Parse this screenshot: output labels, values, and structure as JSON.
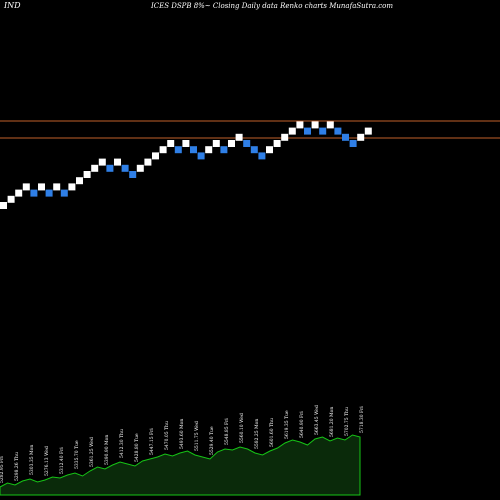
{
  "header": {
    "left": "IND",
    "center": "ICES DSPB 8%~  Closing Daily data  Renko  charts MunafaSutra.com"
  },
  "colors": {
    "background": "#000000",
    "up_brick": "#ffffff",
    "down_brick": "#2f7fe6",
    "reference_line": "#c0602a",
    "volume_fill": "#0a2a0a",
    "volume_stroke": "#16c416",
    "label_text": "#ffffff"
  },
  "chart_data": {
    "type": "renko",
    "title": "ICES DSPB 8%~  Closing Daily data  Renko  charts MunafaSutra.com",
    "reference_lines": [
      1,
      2
    ],
    "bricks": [
      {
        "dir": "up",
        "level": 0
      },
      {
        "dir": "up",
        "level": 1
      },
      {
        "dir": "up",
        "level": 2
      },
      {
        "dir": "up",
        "level": 3
      },
      {
        "dir": "down",
        "level": 2
      },
      {
        "dir": "up",
        "level": 3
      },
      {
        "dir": "down",
        "level": 2
      },
      {
        "dir": "up",
        "level": 3
      },
      {
        "dir": "down",
        "level": 2
      },
      {
        "dir": "up",
        "level": 3
      },
      {
        "dir": "up",
        "level": 4
      },
      {
        "dir": "up",
        "level": 5
      },
      {
        "dir": "up",
        "level": 6
      },
      {
        "dir": "up",
        "level": 7
      },
      {
        "dir": "down",
        "level": 6
      },
      {
        "dir": "up",
        "level": 7
      },
      {
        "dir": "down",
        "level": 6
      },
      {
        "dir": "down",
        "level": 5
      },
      {
        "dir": "up",
        "level": 6
      },
      {
        "dir": "up",
        "level": 7
      },
      {
        "dir": "up",
        "level": 8
      },
      {
        "dir": "up",
        "level": 9
      },
      {
        "dir": "up",
        "level": 10
      },
      {
        "dir": "down",
        "level": 9
      },
      {
        "dir": "up",
        "level": 10
      },
      {
        "dir": "down",
        "level": 9
      },
      {
        "dir": "down",
        "level": 8
      },
      {
        "dir": "up",
        "level": 9
      },
      {
        "dir": "up",
        "level": 10
      },
      {
        "dir": "down",
        "level": 9
      },
      {
        "dir": "up",
        "level": 10
      },
      {
        "dir": "up",
        "level": 11
      },
      {
        "dir": "down",
        "level": 10
      },
      {
        "dir": "down",
        "level": 9
      },
      {
        "dir": "down",
        "level": 8
      },
      {
        "dir": "up",
        "level": 9
      },
      {
        "dir": "up",
        "level": 10
      },
      {
        "dir": "up",
        "level": 11
      },
      {
        "dir": "up",
        "level": 12
      },
      {
        "dir": "up",
        "level": 13
      },
      {
        "dir": "down",
        "level": 12
      },
      {
        "dir": "up",
        "level": 13
      },
      {
        "dir": "down",
        "level": 12
      },
      {
        "dir": "up",
        "level": 13
      },
      {
        "dir": "down",
        "level": 12
      },
      {
        "dir": "down",
        "level": 11
      },
      {
        "dir": "down",
        "level": 10
      },
      {
        "dir": "up",
        "level": 11
      },
      {
        "dir": "up",
        "level": 12
      }
    ],
    "volume": [
      8,
      12,
      10,
      14,
      16,
      13,
      15,
      18,
      17,
      20,
      22,
      19,
      24,
      28,
      26,
      30,
      33,
      31,
      29,
      34,
      36,
      38,
      41,
      39,
      42,
      44,
      40,
      38,
      36,
      43,
      46,
      45,
      48,
      46,
      42,
      40,
      44,
      47,
      52,
      55,
      53,
      50,
      56,
      58,
      54,
      57,
      55,
      60,
      58
    ],
    "volume_labels": [
      {
        "text": "5282.95 Fri",
        "index": 0
      },
      {
        "text": "5298.26 Thu",
        "index": 2
      },
      {
        "text": "5303.35 Mon",
        "index": 4
      },
      {
        "text": "5276.13 Wed",
        "index": 6
      },
      {
        "text": "5312.40 Fri",
        "index": 8
      },
      {
        "text": "5335.70 Tue",
        "index": 10
      },
      {
        "text": "5361.25 Wed",
        "index": 12
      },
      {
        "text": "5390.90 Mon",
        "index": 14
      },
      {
        "text": "5412.30 Thu",
        "index": 16
      },
      {
        "text": "5428.80 Tue",
        "index": 18
      },
      {
        "text": "5447.15 Fri",
        "index": 20
      },
      {
        "text": "5470.05 Thu",
        "index": 22
      },
      {
        "text": "5493.60 Mon",
        "index": 24
      },
      {
        "text": "5511.75 Wed",
        "index": 26
      },
      {
        "text": "5529.40 Tue",
        "index": 28
      },
      {
        "text": "5548.85 Fri",
        "index": 30
      },
      {
        "text": "5560.10 Wed",
        "index": 32
      },
      {
        "text": "5582.25 Mon",
        "index": 34
      },
      {
        "text": "5601.60 Thu",
        "index": 36
      },
      {
        "text": "5619.35 Tue",
        "index": 38
      },
      {
        "text": "5640.90 Fri",
        "index": 40
      },
      {
        "text": "5663.45 Wed",
        "index": 42
      },
      {
        "text": "5681.20 Mon",
        "index": 44
      },
      {
        "text": "5702.75 Thu",
        "index": 46
      },
      {
        "text": "5718.30 Fri",
        "index": 48
      }
    ]
  }
}
